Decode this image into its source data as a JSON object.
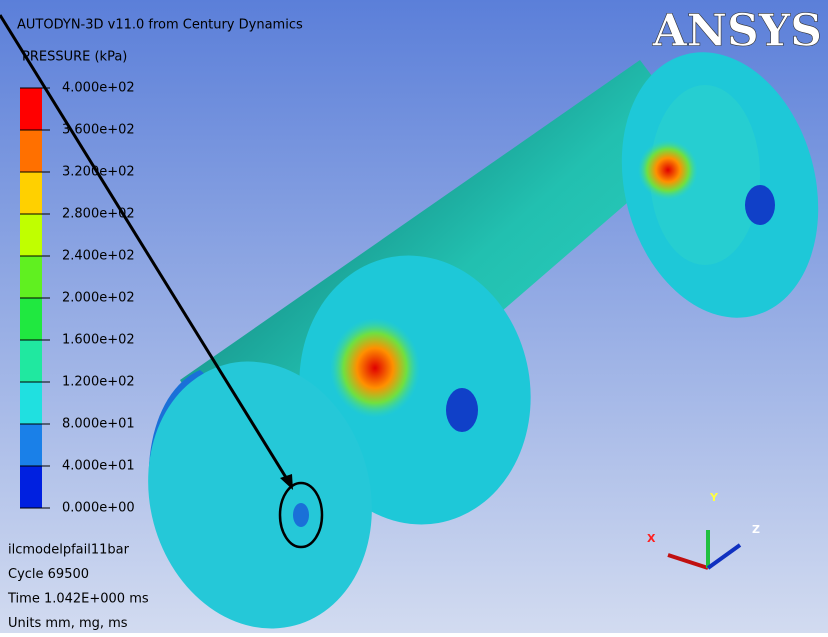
{
  "header": {
    "title": "AUTODYN-3D v11.0 from Century Dynamics",
    "logo": "ANSYS"
  },
  "legend": {
    "title": "PRESSURE (kPa)",
    "labels": [
      "4.000e+02",
      "3.600e+02",
      "3.200e+02",
      "2.800e+02",
      "2.400e+02",
      "2.000e+02",
      "1.600e+02",
      "1.200e+02",
      "8.000e+01",
      "4.000e+01",
      "0.000e+00"
    ]
  },
  "info": [
    "ilcmodelpfail11bar",
    "Cycle 69500",
    "Time 1.042E+000 ms",
    "Units mm, mg, ms"
  ],
  "triad": {
    "x": "X",
    "y": "Y",
    "z": "Z"
  }
}
